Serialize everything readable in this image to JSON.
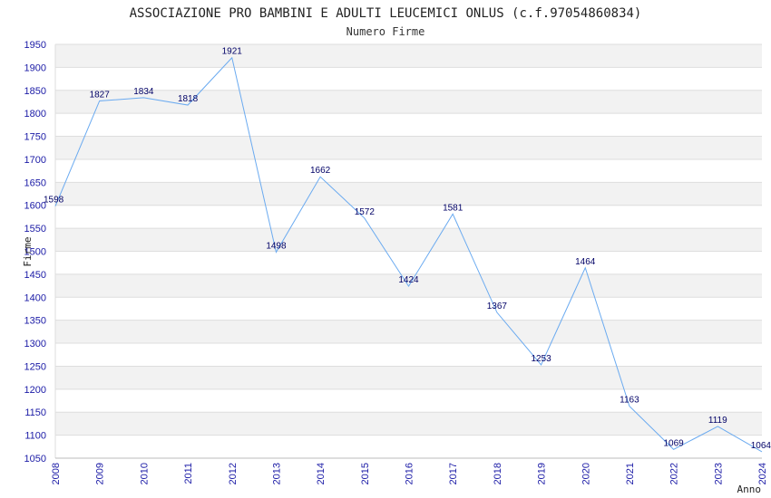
{
  "chart_data": {
    "type": "line",
    "title": "ASSOCIAZIONE PRO BAMBINI E ADULTI LEUCEMICI ONLUS (c.f.97054860834)",
    "subtitle": "Numero Firme",
    "xlabel": "Anno",
    "ylabel": "Firme",
    "x": [
      "2008",
      "2009",
      "2010",
      "2011",
      "2012",
      "2013",
      "2014",
      "2015",
      "2016",
      "2017",
      "2018",
      "2019",
      "2020",
      "2021",
      "2022",
      "2023",
      "2024"
    ],
    "series": [
      {
        "values": [
          1598,
          1827,
          1834,
          1818,
          1921,
          1498,
          1662,
          1572,
          1424,
          1581,
          1367,
          1253,
          1464,
          1163,
          1069,
          1119,
          1064
        ]
      }
    ],
    "ylim": [
      1050,
      1950
    ],
    "ytick_step": 50,
    "grid": true,
    "colors": {
      "line": "#6aaaf0",
      "band": "#f2f2f2",
      "grid": "#dddddd",
      "tick": "#1a1aa6",
      "label": "#000066"
    }
  }
}
